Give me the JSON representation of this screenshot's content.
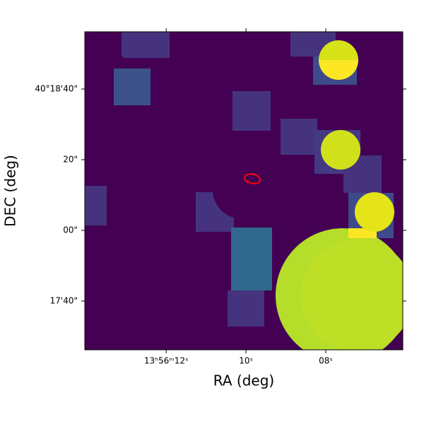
{
  "chart_data": {
    "type": "image",
    "xlabel": "RA (deg)",
    "ylabel": "DEC (deg)",
    "xlim": [
      14.04,
      6.07
    ],
    "ylim": [
      -33.8,
      56.2
    ],
    "xticks": [
      {
        "value": 12,
        "label": "13ʰ56ᵐ12ˢ"
      },
      {
        "value": 10,
        "label": "10ˢ"
      },
      {
        "value": 8,
        "label": "08ˢ"
      }
    ],
    "yticks": [
      {
        "value": 40,
        "label": "40°18'40\""
      },
      {
        "value": 20,
        "label": "20\""
      },
      {
        "value": 0,
        "label": "00\""
      },
      {
        "value": -20,
        "label": "17'40\""
      }
    ]
  }
}
